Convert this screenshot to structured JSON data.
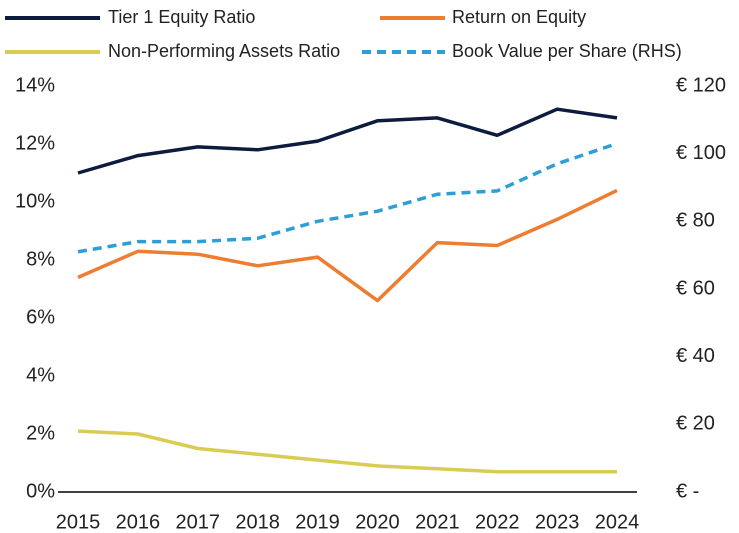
{
  "chart_data": {
    "type": "line",
    "categories": [
      "2015",
      "2016",
      "2017",
      "2018",
      "2019",
      "2020",
      "2021",
      "2022",
      "2023",
      "2024"
    ],
    "series": [
      {
        "name": "Tier 1 Equity Ratio",
        "color": "#0d1b3e",
        "values": [
          11.0,
          11.6,
          11.9,
          11.8,
          12.1,
          12.8,
          12.9,
          12.3,
          13.2,
          12.9
        ]
      },
      {
        "name": "Return on Equity",
        "color": "#ed7d31",
        "values": [
          7.4,
          8.3,
          8.2,
          7.8,
          8.1,
          6.6,
          8.6,
          8.5,
          9.4,
          10.4
        ]
      },
      {
        "name": "Non-Performing Assets Ratio",
        "color": "#d9cc55",
        "values": [
          2.1,
          2.0,
          1.5,
          1.3,
          1.1,
          0.9,
          0.8,
          0.7,
          0.7,
          0.7
        ]
      },
      {
        "name": "Book Value per Share (RHS)",
        "color": "#2e9fd6",
        "dashed": true,
        "axis": "y2",
        "values": [
          71,
          74,
          74,
          75,
          80,
          83,
          88,
          89,
          97,
          103
        ]
      }
    ],
    "ylim": [
      0,
      14
    ],
    "yticks": [
      {
        "value": 0,
        "label": "0%"
      },
      {
        "value": 2,
        "label": "2%"
      },
      {
        "value": 4,
        "label": "4%"
      },
      {
        "value": 6,
        "label": "6%"
      },
      {
        "value": 8,
        "label": "8%"
      },
      {
        "value": 10,
        "label": "10%"
      },
      {
        "value": 12,
        "label": "12%"
      },
      {
        "value": 14,
        "label": "14%"
      }
    ],
    "y2lim": [
      0,
      120
    ],
    "y2ticks": [
      {
        "value": 0,
        "label": "€ -"
      },
      {
        "value": 20,
        "label": "€ 20"
      },
      {
        "value": 40,
        "label": "€ 40"
      },
      {
        "value": 60,
        "label": "€ 60"
      },
      {
        "value": 80,
        "label": "€ 80"
      },
      {
        "value": 100,
        "label": "€ 100"
      },
      {
        "value": 120,
        "label": "€ 120"
      }
    ],
    "grid": false
  }
}
